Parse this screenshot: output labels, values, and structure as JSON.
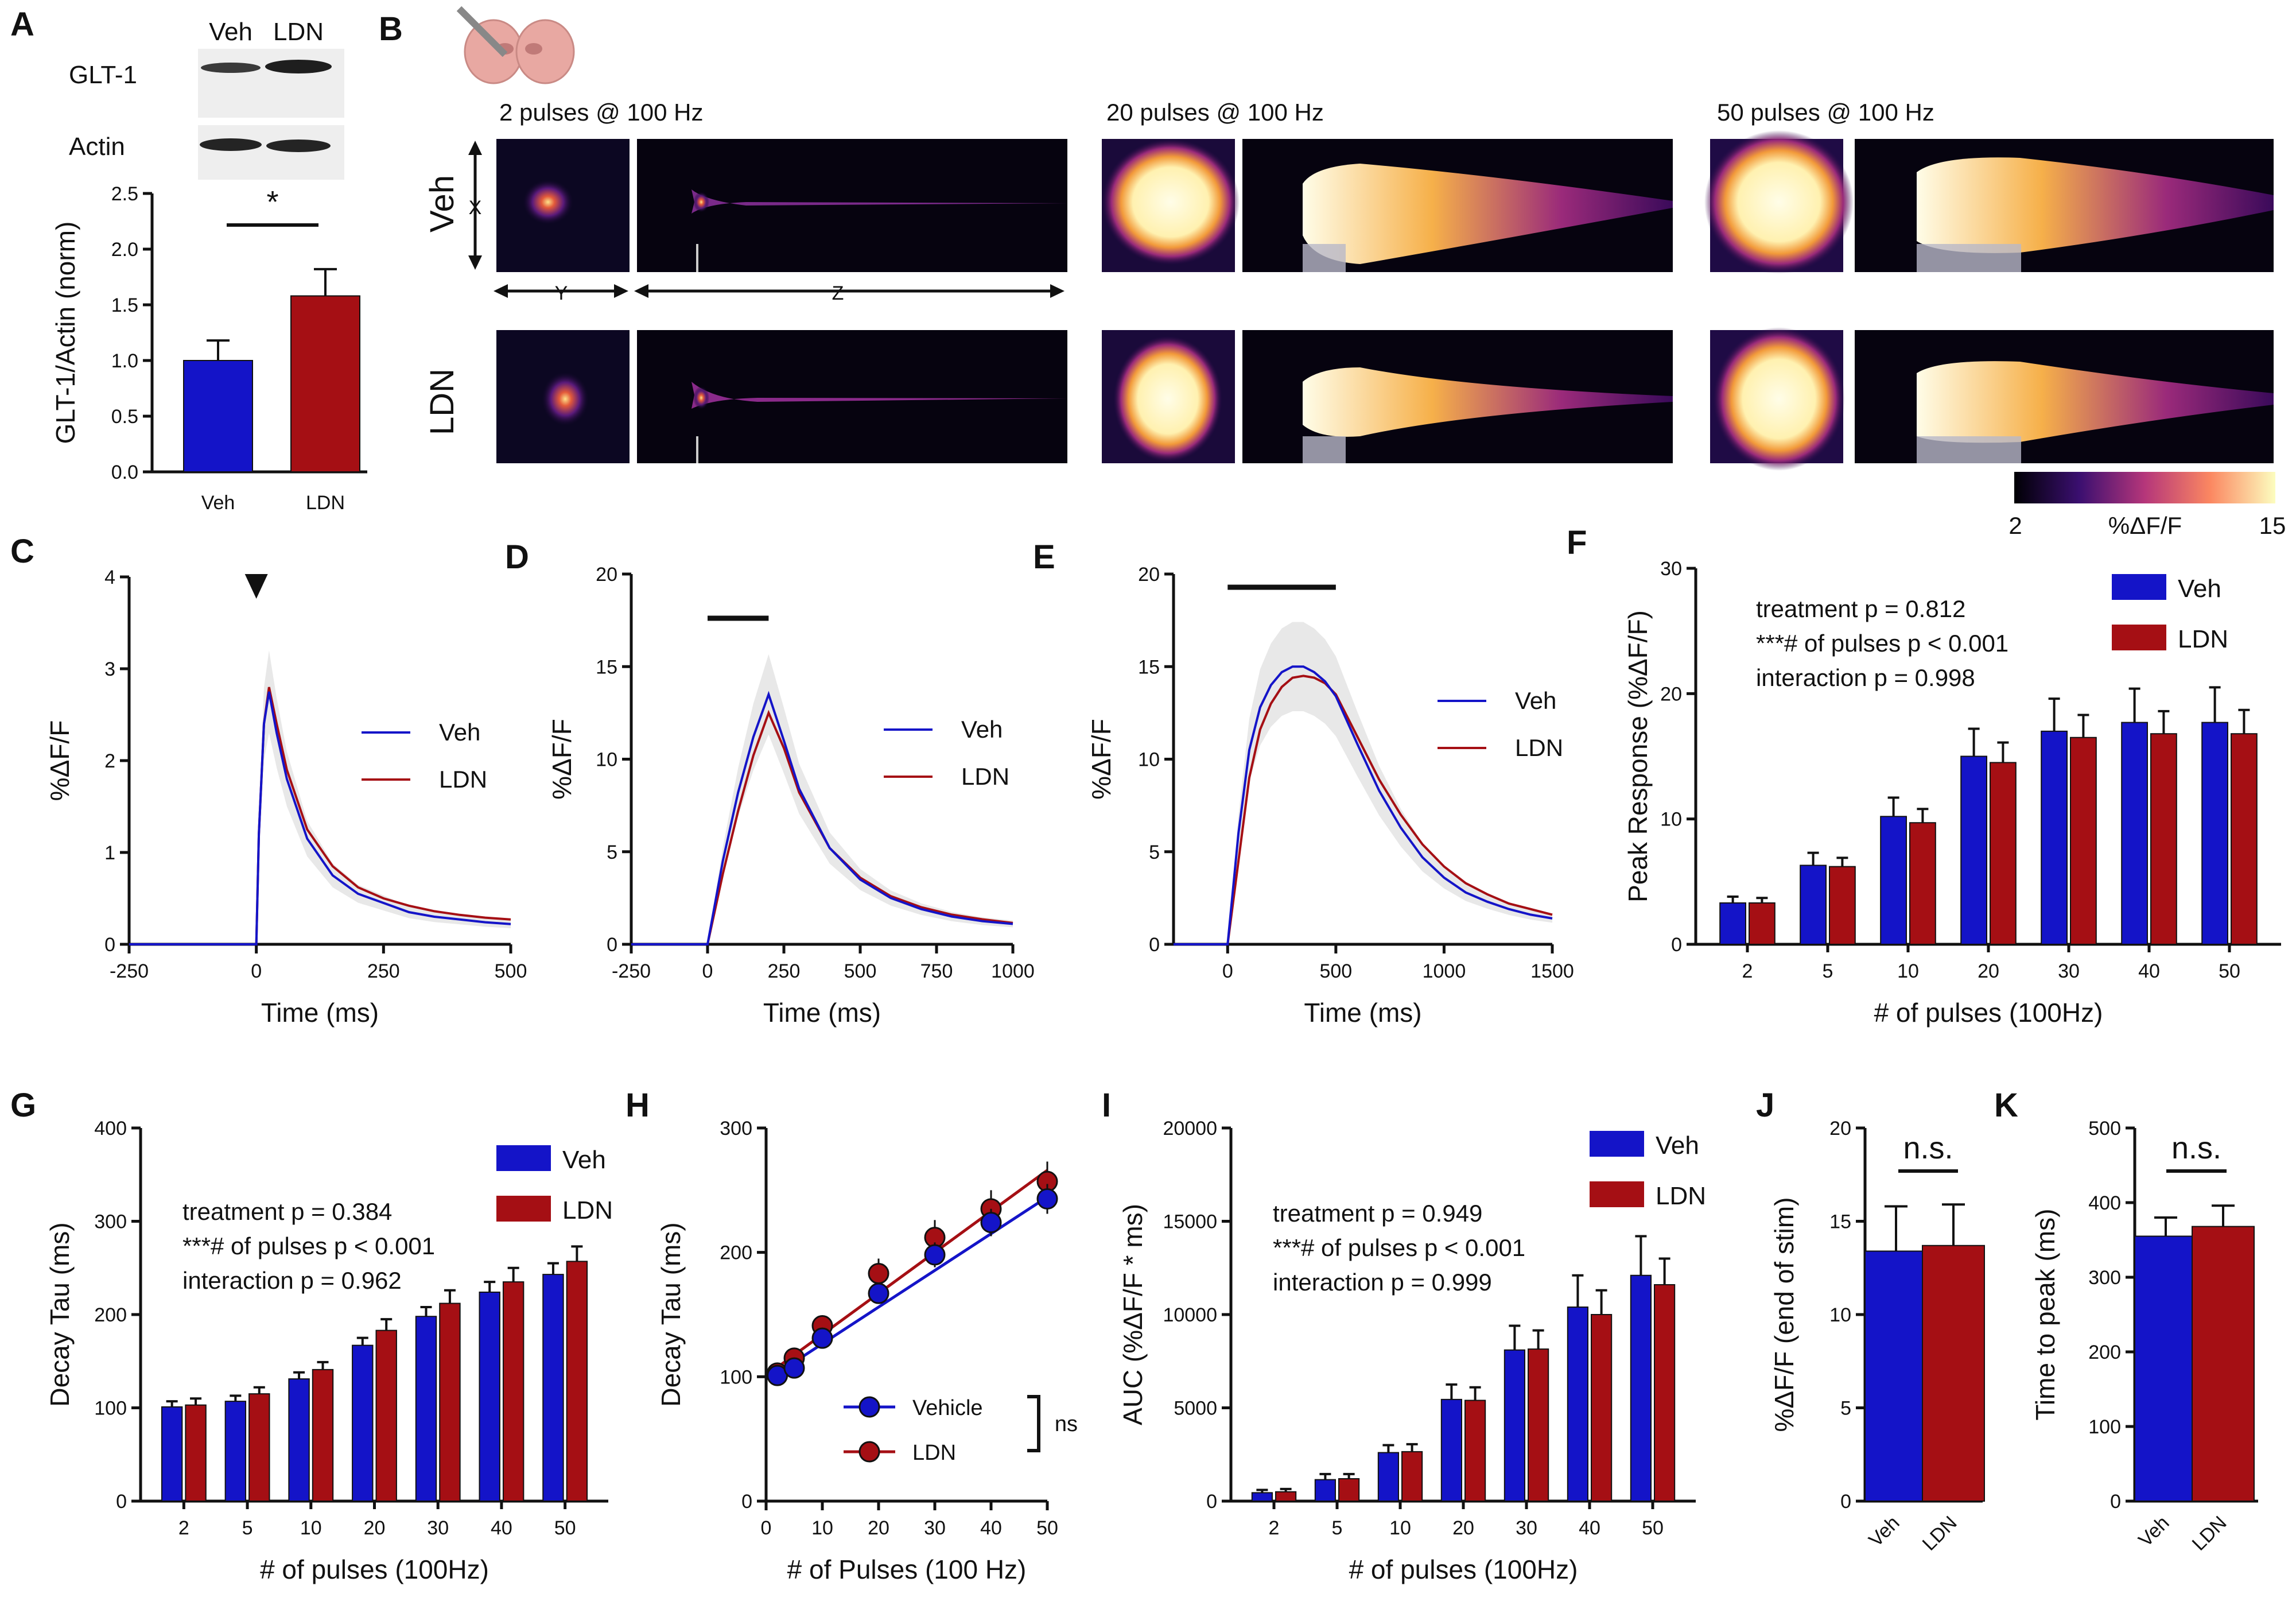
{
  "panel_labels": [
    "A",
    "B",
    "C",
    "D",
    "E",
    "F",
    "G",
    "H",
    "I",
    "J",
    "K"
  ],
  "colors": {
    "veh": "#1414c8",
    "ldn": "#a50f14",
    "sem": "#e8e8e8",
    "black": "#111111"
  },
  "panel_a": {
    "blot_lanes": [
      "Veh",
      "LDN"
    ],
    "blot_rows": [
      "GLT-1",
      "Actin"
    ],
    "significance": "*"
  },
  "panel_b": {
    "conditions": [
      "2 pulses @ 100 Hz",
      "20 pulses @ 100 Hz",
      "50 pulses @ 100 Hz"
    ],
    "row_labels": [
      "Veh",
      "LDN"
    ],
    "axis_x": "X",
    "axis_y": "Y",
    "axis_z": "Z",
    "colorbar": {
      "min": "2",
      "label": "%ΔF/F",
      "max": "15"
    }
  },
  "chart_data": [
    {
      "id": "A",
      "type": "bar",
      "categories": [
        "Veh",
        "LDN"
      ],
      "values": [
        1.0,
        1.58
      ],
      "errors": [
        0.18,
        0.24
      ],
      "ylabel": "GLT-1/Actin (norm)",
      "ylim": [
        0,
        2.5
      ],
      "yticks": [
        "0.0",
        "0.5",
        "1.0",
        "1.5",
        "2.0",
        "2.5"
      ],
      "significance": "*"
    },
    {
      "id": "C",
      "type": "line",
      "xlabel": "Time (ms)",
      "ylabel": "%ΔF/F",
      "xlim": [
        -250,
        500
      ],
      "ylim": [
        0,
        4
      ],
      "xticks": [
        "-250",
        "0",
        "250",
        "500"
      ],
      "yticks": [
        "0",
        "1",
        "2",
        "3",
        "4"
      ],
      "legend": [
        "Veh",
        "LDN"
      ],
      "stim_marker": "arrowhead at 0 ms",
      "series": [
        {
          "name": "Veh",
          "x": [
            -250,
            -100,
            0,
            5,
            15,
            25,
            40,
            60,
            100,
            150,
            200,
            250,
            300,
            350,
            400,
            450,
            500
          ],
          "y": [
            0,
            0,
            0,
            1.2,
            2.4,
            2.75,
            2.3,
            1.8,
            1.15,
            0.75,
            0.55,
            0.45,
            0.35,
            0.3,
            0.27,
            0.24,
            0.22
          ]
        },
        {
          "name": "LDN",
          "x": [
            -250,
            -100,
            0,
            5,
            15,
            25,
            40,
            60,
            100,
            150,
            200,
            250,
            300,
            350,
            400,
            450,
            500
          ],
          "y": [
            0,
            0,
            0,
            1.2,
            2.4,
            2.8,
            2.4,
            1.9,
            1.25,
            0.85,
            0.62,
            0.5,
            0.42,
            0.36,
            0.32,
            0.29,
            0.27
          ]
        }
      ]
    },
    {
      "id": "D",
      "type": "line",
      "xlabel": "Time (ms)",
      "ylabel": "%ΔF/F",
      "xlim": [
        -250,
        1000
      ],
      "ylim": [
        0,
        20
      ],
      "xticks": [
        "-250",
        "0",
        "250",
        "500",
        "750",
        "1000"
      ],
      "yticks": [
        "0",
        "5",
        "10",
        "15",
        "20"
      ],
      "legend": [
        "Veh",
        "LDN"
      ],
      "stim_bar": [
        0,
        200
      ],
      "series": [
        {
          "name": "Veh",
          "x": [
            -250,
            0,
            50,
            100,
            150,
            200,
            250,
            300,
            400,
            500,
            600,
            700,
            800,
            900,
            1000
          ],
          "y": [
            0,
            0,
            4.5,
            8.2,
            11.2,
            13.5,
            11,
            8.4,
            5.2,
            3.5,
            2.5,
            1.9,
            1.5,
            1.25,
            1.1
          ]
        },
        {
          "name": "LDN",
          "x": [
            -250,
            0,
            50,
            100,
            150,
            200,
            250,
            300,
            400,
            500,
            600,
            700,
            800,
            900,
            1000
          ],
          "y": [
            0,
            0,
            3.8,
            7.2,
            10.2,
            12.5,
            10.6,
            8.2,
            5.2,
            3.6,
            2.6,
            2.0,
            1.6,
            1.35,
            1.15
          ]
        }
      ]
    },
    {
      "id": "E",
      "type": "line",
      "xlabel": "Time (ms)",
      "ylabel": "%ΔF/F",
      "xlim": [
        -250,
        1500
      ],
      "ylim": [
        0,
        20
      ],
      "xticks": [
        "0",
        "500",
        "1000",
        "1500"
      ],
      "yticks": [
        "0",
        "5",
        "10",
        "15",
        "20"
      ],
      "legend": [
        "Veh",
        "LDN"
      ],
      "stim_bar": [
        0,
        500
      ],
      "series": [
        {
          "name": "Veh",
          "x": [
            -250,
            0,
            50,
            100,
            150,
            200,
            250,
            300,
            350,
            400,
            450,
            500,
            600,
            700,
            800,
            900,
            1000,
            1100,
            1200,
            1300,
            1400,
            1500
          ],
          "y": [
            0,
            0,
            6,
            10.5,
            12.8,
            14,
            14.7,
            15,
            15,
            14.7,
            14.2,
            13.4,
            10.8,
            8.3,
            6.3,
            4.7,
            3.6,
            2.8,
            2.3,
            1.9,
            1.6,
            1.4
          ]
        },
        {
          "name": "LDN",
          "x": [
            -250,
            0,
            50,
            100,
            150,
            200,
            250,
            300,
            350,
            400,
            450,
            500,
            600,
            700,
            800,
            900,
            1000,
            1100,
            1200,
            1300,
            1400,
            1500
          ],
          "y": [
            0,
            0,
            4.5,
            9,
            11.6,
            13,
            13.9,
            14.4,
            14.5,
            14.4,
            14.1,
            13.5,
            11.2,
            8.9,
            7,
            5.4,
            4.2,
            3.3,
            2.7,
            2.2,
            1.9,
            1.6
          ]
        }
      ]
    },
    {
      "id": "F",
      "type": "bar",
      "categories": [
        "2",
        "5",
        "10",
        "20",
        "30",
        "40",
        "50"
      ],
      "xlabel": "# of pulses (100Hz)",
      "ylabel": "Peak Response (%ΔF/F)",
      "ylim": [
        0,
        30
      ],
      "yticks": [
        "0",
        "10",
        "20",
        "30"
      ],
      "legend": [
        "Veh",
        "LDN"
      ],
      "stats": [
        "treatment p = 0.812",
        "***# of pulses p < 0.001",
        "interaction p = 0.998"
      ],
      "series": [
        {
          "name": "Veh",
          "values": [
            3.3,
            6.3,
            10.2,
            15.0,
            17.0,
            17.7,
            17.7
          ],
          "errors": [
            0.5,
            1.0,
            1.5,
            2.2,
            2.6,
            2.7,
            2.8
          ]
        },
        {
          "name": "LDN",
          "values": [
            3.3,
            6.2,
            9.7,
            14.5,
            16.5,
            16.8,
            16.8
          ],
          "errors": [
            0.4,
            0.7,
            1.1,
            1.6,
            1.8,
            1.8,
            1.9
          ]
        }
      ]
    },
    {
      "id": "G",
      "type": "bar",
      "categories": [
        "2",
        "5",
        "10",
        "20",
        "30",
        "40",
        "50"
      ],
      "xlabel": "# of pulses (100Hz)",
      "ylabel": "Decay Tau (ms)",
      "ylim": [
        0,
        400
      ],
      "yticks": [
        "0",
        "100",
        "200",
        "300",
        "400"
      ],
      "legend": [
        "Veh",
        "LDN"
      ],
      "stats": [
        "treatment p = 0.384",
        "***# of pulses p < 0.001",
        "interaction p = 0.962"
      ],
      "series": [
        {
          "name": "Veh",
          "values": [
            101,
            107,
            131,
            167,
            198,
            224,
            243
          ],
          "errors": [
            6,
            6,
            7,
            8,
            10,
            11,
            12
          ]
        },
        {
          "name": "LDN",
          "values": [
            103,
            115,
            141,
            183,
            212,
            235,
            257
          ],
          "errors": [
            7,
            7,
            8,
            12,
            14,
            15,
            16
          ]
        }
      ]
    },
    {
      "id": "H",
      "type": "scatter",
      "xlabel": "# of Pulses (100 Hz)",
      "ylabel": "Decay Tau (ms)",
      "xlim": [
        0,
        50
      ],
      "ylim": [
        0,
        300
      ],
      "xticks": [
        "0",
        "10",
        "20",
        "30",
        "40",
        "50"
      ],
      "yticks": [
        "0",
        "100",
        "200",
        "300"
      ],
      "legend": [
        "Vehicle",
        "LDN"
      ],
      "annotation": "ns",
      "x": [
        2,
        5,
        10,
        20,
        30,
        40,
        50
      ],
      "series": [
        {
          "name": "Vehicle",
          "y": [
            101,
            107,
            131,
            167,
            198,
            224,
            243
          ],
          "errors": [
            6,
            6,
            7,
            8,
            10,
            11,
            12
          ],
          "fit": [
            97,
            2.95
          ]
        },
        {
          "name": "LDN",
          "y": [
            103,
            115,
            141,
            183,
            212,
            235,
            257
          ],
          "errors": [
            7,
            7,
            8,
            12,
            14,
            15,
            16
          ],
          "fit": [
            101,
            3.3
          ]
        }
      ]
    },
    {
      "id": "I",
      "type": "bar",
      "categories": [
        "2",
        "5",
        "10",
        "20",
        "30",
        "40",
        "50"
      ],
      "xlabel": "# of pulses (100Hz)",
      "ylabel": "AUC (%ΔF/F * ms)",
      "ylim": [
        0,
        20000
      ],
      "yticks": [
        "0",
        "5000",
        "10000",
        "15000",
        "20000"
      ],
      "legend": [
        "Veh",
        "LDN"
      ],
      "stats": [
        "treatment p = 0.949",
        "***# of pulses p < 0.001",
        "interaction p = 0.999"
      ],
      "series": [
        {
          "name": "Veh",
          "values": [
            450,
            1150,
            2600,
            5450,
            8100,
            10400,
            12100
          ],
          "errors": [
            150,
            300,
            400,
            800,
            1300,
            1700,
            2100
          ]
        },
        {
          "name": "LDN",
          "values": [
            500,
            1200,
            2650,
            5400,
            8150,
            10000,
            11600
          ],
          "errors": [
            150,
            250,
            400,
            700,
            1000,
            1300,
            1400
          ]
        }
      ]
    },
    {
      "id": "J",
      "type": "bar",
      "categories": [
        "Veh",
        "LDN"
      ],
      "values": [
        13.4,
        13.7
      ],
      "errors": [
        2.4,
        2.2
      ],
      "ylabel": "%ΔF/F (end of stim)",
      "ylim": [
        0,
        20
      ],
      "yticks": [
        "0",
        "5",
        "10",
        "15",
        "20"
      ],
      "significance": "n.s."
    },
    {
      "id": "K",
      "type": "bar",
      "categories": [
        "Veh",
        "LDN"
      ],
      "values": [
        355,
        368
      ],
      "errors": [
        25,
        28
      ],
      "ylabel": "Time to peak (ms)",
      "ylim": [
        0,
        500
      ],
      "yticks": [
        "0",
        "100",
        "200",
        "300",
        "400",
        "500"
      ],
      "significance": "n.s."
    }
  ]
}
